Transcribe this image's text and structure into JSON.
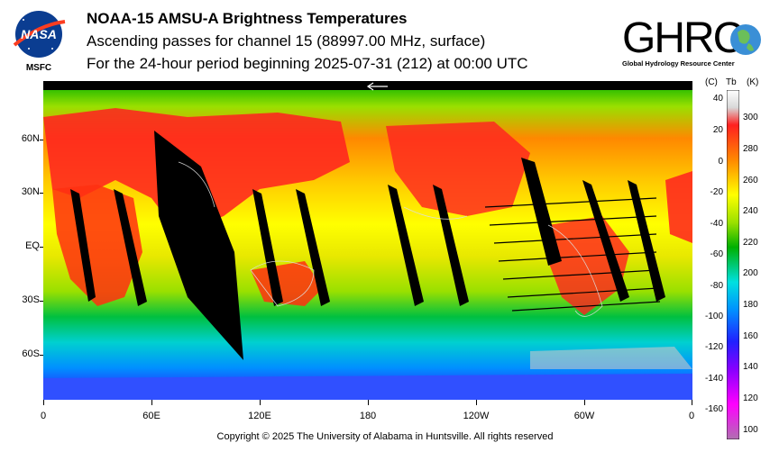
{
  "header": {
    "title": "NOAA-15 AMSU-A Brightness Temperatures",
    "subtitle1": "Ascending passes for channel 15 (88997.00 MHz, surface)",
    "subtitle2": "For the 24-hour period beginning 2025-07-31 (212) at 00:00 UTC"
  },
  "logos": {
    "nasa_text": "NASA",
    "msfc_text": "MSFC",
    "ghrc_text": "GHRC",
    "ghrc_sub": "Global Hydrology Resource Center"
  },
  "map": {
    "y_labels": [
      "60N",
      "30N",
      "EQ",
      "30S",
      "60S"
    ],
    "x_labels": [
      "0",
      "60E",
      "120E",
      "180",
      "120W",
      "60W",
      "0"
    ],
    "arrow_icon": "left-arrow-icon"
  },
  "colorbar": {
    "c_head": "(C)",
    "tb_head": "Tb",
    "k_head": "(K)",
    "celsius_ticks": [
      "40",
      "20",
      "0",
      "-20",
      "-40",
      "-60",
      "-80",
      "-100",
      "-120",
      "-140",
      "-160"
    ],
    "kelvin_ticks": [
      "300",
      "280",
      "260",
      "240",
      "220",
      "200",
      "180",
      "160",
      "140",
      "120",
      "100"
    ],
    "colors": [
      "#ffffff",
      "#d8d8d8",
      "#ff2020",
      "#ff8800",
      "#ffff00",
      "#9ae000",
      "#00b000",
      "#00e0e0",
      "#0090ff",
      "#2020ff",
      "#8800ff",
      "#ff00ff",
      "#b070b0"
    ]
  },
  "footer": {
    "copyright": "Copyright © 2025 The University of Alabama in Huntsville.  All rights reserved"
  }
}
